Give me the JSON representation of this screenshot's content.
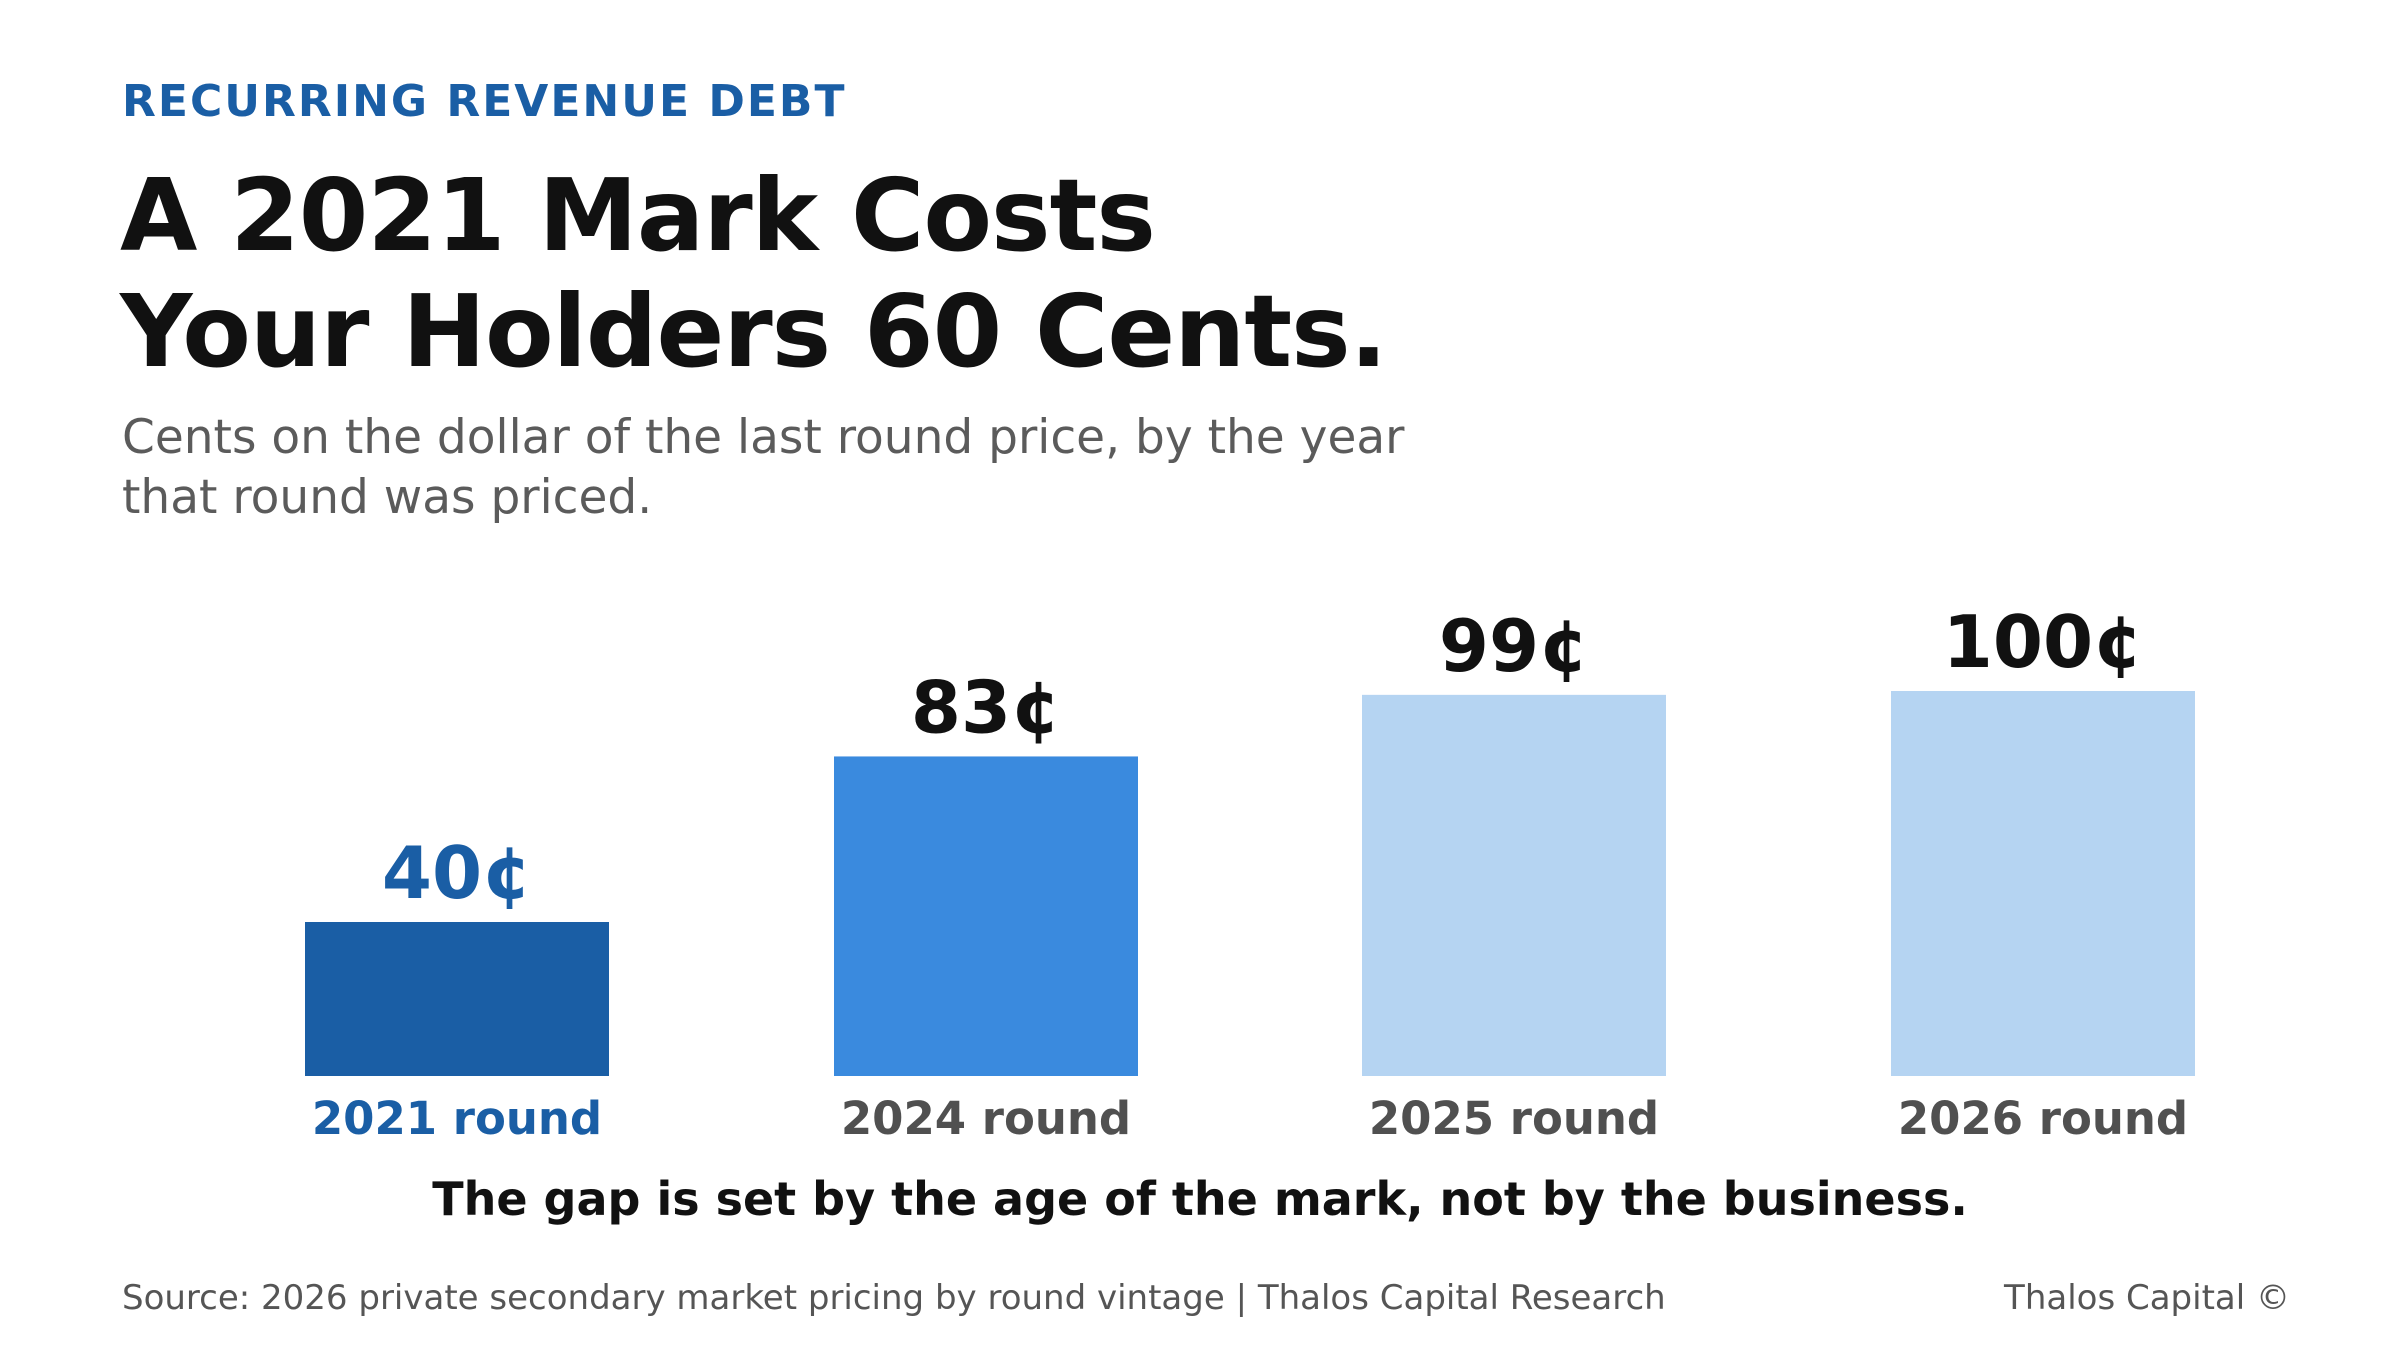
{
  "header": {
    "eyebrow": "RECURRING REVENUE DEBT",
    "title_line1": "A 2021 Mark Costs",
    "title_line2": "Your Holders 60 Cents.",
    "subtitle_line1": "Cents on the dollar of the last round price, by the year",
    "subtitle_line2": "that round was priced."
  },
  "chart_data": {
    "type": "bar",
    "categories": [
      "2021 round",
      "2024 round",
      "2025 round",
      "2026 round"
    ],
    "values": [
      40,
      83,
      99,
      100
    ],
    "value_labels": [
      "40¢",
      "83¢",
      "99¢",
      "100¢"
    ],
    "unit": "¢",
    "ylim": [
      0,
      100
    ],
    "grid": false,
    "legend": "none",
    "colors": {
      "bars": [
        "#1a5ea5",
        "#3a8ade",
        "#b5d4f2",
        "#b5d4f2"
      ],
      "value_labels": [
        "#1a5ea5",
        "#111111",
        "#111111",
        "#111111"
      ],
      "category_labels": [
        "#1a5ea5",
        "#505050",
        "#505050",
        "#505050"
      ]
    }
  },
  "takeaway": "The gap is set by the age of the mark, not by the business.",
  "footer": {
    "source": "Source: 2026 private secondary market pricing by round vintage | Thalos Capital Research",
    "brand": "Thalos Capital ©"
  }
}
